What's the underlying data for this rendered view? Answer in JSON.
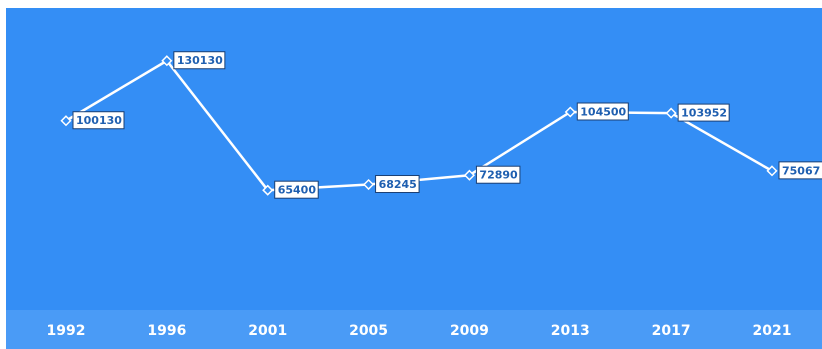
{
  "chart_data": {
    "type": "line",
    "x": [
      "1992",
      "1996",
      "2001",
      "2005",
      "2009",
      "2013",
      "2017",
      "2021"
    ],
    "values": [
      100130,
      130130,
      65400,
      68245,
      72890,
      104500,
      103952,
      75067
    ],
    "value_labels": [
      "100130",
      "130130",
      "65400",
      "68245",
      "72890",
      "104500",
      "103952",
      "75067"
    ],
    "ylim": [
      0,
      160000
    ],
    "grid": false,
    "legend": "none",
    "colors": {
      "background": "#348ef5",
      "plot_band": "#4a9bf6",
      "line": "#ffffff",
      "label_box": "#ffffff",
      "label_text": "#1f5fb0",
      "tick_text": "#ffffff"
    }
  }
}
